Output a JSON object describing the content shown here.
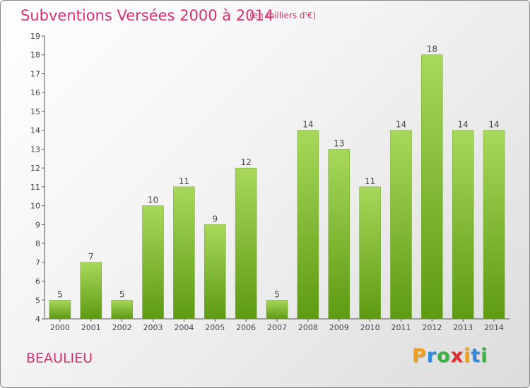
{
  "title": "Subventions Versées 2000 à 2014",
  "subtitle": "(en milliers d'€)",
  "commune": "BEAULIEU",
  "brand": {
    "letters": [
      "P",
      "r",
      "o",
      "x",
      "i",
      "t",
      "i"
    ],
    "colors": [
      "#f0a020",
      "#2d8be0",
      "#3cb043",
      "#e03030",
      "#f0a020",
      "#2d8be0",
      "#3cb043"
    ]
  },
  "colors": {
    "title": "#d6306e",
    "bar_top": "#a8d85a",
    "bar_bottom": "#5e9a12",
    "axis": "#555555"
  },
  "chart_data": {
    "type": "bar",
    "categories": [
      "2000",
      "2001",
      "2002",
      "2003",
      "2004",
      "2005",
      "2006",
      "2007",
      "2008",
      "2009",
      "2010",
      "2011",
      "2012",
      "2013",
      "2014"
    ],
    "values": [
      5,
      7,
      5,
      10,
      11,
      9,
      12,
      5,
      14,
      13,
      11,
      14,
      18,
      14,
      14
    ],
    "data_labels": [
      "5",
      "7",
      "5",
      "10",
      "11",
      "9",
      "12",
      "5",
      "14",
      "13",
      "11",
      "14",
      "18",
      "14",
      "14"
    ],
    "y_ticks": [
      "4",
      "5",
      "6",
      "7",
      "8",
      "9",
      "10",
      "11",
      "12",
      "13",
      "14",
      "15",
      "16",
      "17",
      "18",
      "19"
    ],
    "ylim": [
      4,
      19
    ],
    "grid": false,
    "legend": "none"
  }
}
